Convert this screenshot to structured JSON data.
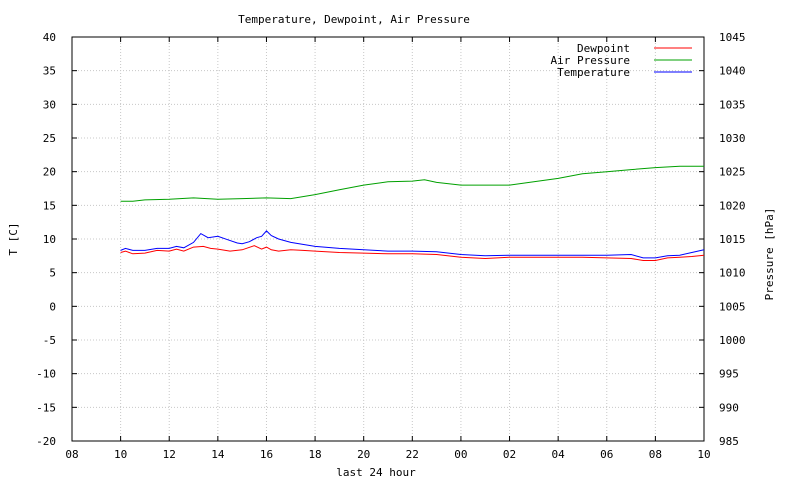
{
  "chart_data": {
    "type": "line",
    "title": "Temperature, Dewpoint, Air Pressure",
    "xlabel": "last 24 hour",
    "ylabel_left": "T [C]",
    "ylabel_right": "Pressure [hPa]",
    "x_tick_labels": [
      "08",
      "10",
      "12",
      "14",
      "16",
      "18",
      "20",
      "22",
      "00",
      "02",
      "04",
      "06",
      "08",
      "10"
    ],
    "x_range_hours": [
      0,
      26
    ],
    "ylim_left": [
      -20,
      40
    ],
    "ylim_right": [
      985,
      1045
    ],
    "y_ticks_left": [
      "40",
      "35",
      "30",
      "25",
      "20",
      "15",
      "10",
      "5",
      "0",
      "-5",
      "-10",
      "-15",
      "-20"
    ],
    "y_ticks_right": [
      "1045",
      "1040",
      "1035",
      "1030",
      "1025",
      "1020",
      "1015",
      "1010",
      "1005",
      "1000",
      "995",
      "990",
      "985"
    ],
    "grid": true,
    "legend_position": "top-right",
    "series": [
      {
        "name": "Dewpoint",
        "axis": "left",
        "color": "#ff0000",
        "x": [
          2,
          2.2,
          2.5,
          3,
          3.5,
          4,
          4.3,
          4.6,
          5,
          5.4,
          5.7,
          6,
          6.5,
          7,
          7.5,
          7.8,
          8,
          8.2,
          8.5,
          9,
          9.5,
          10,
          11,
          12,
          13,
          14,
          15,
          16,
          17,
          17.5,
          18,
          19,
          20,
          21,
          22,
          23,
          23.5,
          24,
          24.5,
          25,
          25.5,
          26
        ],
        "y": [
          8,
          8.2,
          7.8,
          7.9,
          8.3,
          8.2,
          8.5,
          8.2,
          8.8,
          8.9,
          8.6,
          8.5,
          8.2,
          8.4,
          9.0,
          8.5,
          8.8,
          8.4,
          8.2,
          8.4,
          8.3,
          8.2,
          8.0,
          7.9,
          7.8,
          7.8,
          7.7,
          7.3,
          7.1,
          7.2,
          7.3,
          7.3,
          7.3,
          7.3,
          7.2,
          7.1,
          6.8,
          6.8,
          7.2,
          7.3,
          7.4,
          7.6
        ]
      },
      {
        "name": "Air Pressure",
        "axis": "right",
        "color": "#00a000",
        "x": [
          2,
          2.5,
          3,
          4,
          5,
          6,
          7,
          8,
          9,
          10,
          11,
          12,
          13,
          14,
          14.5,
          15,
          16,
          17,
          18,
          19,
          20,
          21,
          22,
          23,
          24,
          25,
          25.5,
          26
        ],
        "y": [
          1020.6,
          1020.6,
          1020.8,
          1020.9,
          1021.1,
          1020.9,
          1021.0,
          1021.1,
          1021.0,
          1021.6,
          1022.3,
          1023.0,
          1023.5,
          1023.6,
          1023.8,
          1023.4,
          1023.0,
          1023.0,
          1023.0,
          1023.5,
          1024.0,
          1024.7,
          1025.0,
          1025.3,
          1025.6,
          1025.8,
          1025.8,
          1025.8
        ]
      },
      {
        "name": "Temperature",
        "axis": "left",
        "color": "#0000ff",
        "x": [
          2,
          2.2,
          2.5,
          3,
          3.5,
          4,
          4.3,
          4.6,
          5,
          5.3,
          5.6,
          6,
          6.4,
          6.8,
          7,
          7.3,
          7.6,
          7.8,
          8,
          8.2,
          8.5,
          9,
          9.5,
          10,
          11,
          12,
          13,
          14,
          15,
          16,
          17,
          18,
          19,
          20,
          21,
          22,
          23,
          23.5,
          24,
          24.5,
          25,
          25.5,
          26
        ],
        "y": [
          8.3,
          8.6,
          8.3,
          8.3,
          8.6,
          8.6,
          8.9,
          8.7,
          9.5,
          10.8,
          10.2,
          10.4,
          9.9,
          9.4,
          9.3,
          9.6,
          10.2,
          10.4,
          11.2,
          10.5,
          10.0,
          9.5,
          9.2,
          8.9,
          8.6,
          8.4,
          8.2,
          8.2,
          8.1,
          7.7,
          7.5,
          7.6,
          7.6,
          7.6,
          7.6,
          7.6,
          7.7,
          7.2,
          7.2,
          7.5,
          7.6,
          8.0,
          8.4
        ]
      }
    ]
  }
}
